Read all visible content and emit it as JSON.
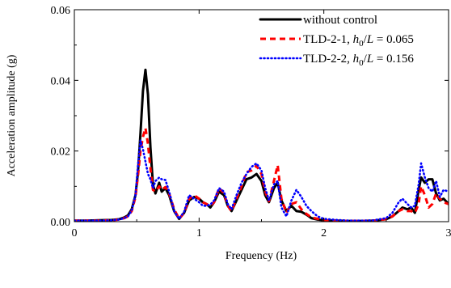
{
  "chart_data": {
    "type": "line",
    "title": "",
    "xlabel": "Frequency (Hz)",
    "ylabel": "Acceleration amplitude (g)",
    "xlim": [
      0,
      3
    ],
    "ylim": [
      0,
      0.06
    ],
    "x_ticks": [
      "0",
      "1",
      "2",
      "3"
    ],
    "y_ticks": [
      "0.00",
      "0.02",
      "0.04",
      "0.06"
    ],
    "grid": false,
    "legend_position": "top-right",
    "series": [
      {
        "name": "without control",
        "legend_prefix": "without control",
        "legend_italic": "",
        "legend_sub": "",
        "legend_suffix": "",
        "color": "#000000",
        "style": "solid",
        "x": [
          0,
          0.1,
          0.2,
          0.3,
          0.36,
          0.4,
          0.43,
          0.46,
          0.49,
          0.51,
          0.53,
          0.55,
          0.57,
          0.59,
          0.61,
          0.63,
          0.65,
          0.68,
          0.7,
          0.73,
          0.76,
          0.8,
          0.84,
          0.88,
          0.92,
          0.96,
          1.0,
          1.03,
          1.06,
          1.09,
          1.12,
          1.16,
          1.2,
          1.23,
          1.26,
          1.3,
          1.34,
          1.38,
          1.42,
          1.46,
          1.5,
          1.53,
          1.56,
          1.6,
          1.63,
          1.66,
          1.7,
          1.74,
          1.78,
          1.82,
          1.86,
          1.9,
          1.95,
          2.0,
          2.1,
          2.2,
          2.3,
          2.4,
          2.5,
          2.55,
          2.6,
          2.63,
          2.67,
          2.7,
          2.73,
          2.76,
          2.78,
          2.81,
          2.84,
          2.87,
          2.9,
          2.93,
          2.96,
          3.0
        ],
        "values": [
          0.0003,
          0.0003,
          0.0004,
          0.0005,
          0.0007,
          0.0012,
          0.0018,
          0.0035,
          0.0075,
          0.014,
          0.025,
          0.037,
          0.043,
          0.036,
          0.021,
          0.0105,
          0.008,
          0.011,
          0.0085,
          0.0095,
          0.0075,
          0.003,
          0.0008,
          0.0025,
          0.006,
          0.007,
          0.0065,
          0.0055,
          0.005,
          0.004,
          0.0055,
          0.0085,
          0.0075,
          0.0045,
          0.003,
          0.006,
          0.009,
          0.012,
          0.0125,
          0.0135,
          0.0115,
          0.0075,
          0.0055,
          0.0095,
          0.011,
          0.006,
          0.003,
          0.0045,
          0.003,
          0.0028,
          0.002,
          0.001,
          0.0006,
          0.0004,
          0.0003,
          0.0002,
          0.0002,
          0.0003,
          0.0007,
          0.0015,
          0.003,
          0.004,
          0.0035,
          0.004,
          0.0025,
          0.009,
          0.0125,
          0.011,
          0.012,
          0.012,
          0.008,
          0.006,
          0.0065,
          0.005
        ]
      },
      {
        "name": "TLD-2-1, h0/L = 0.065",
        "legend_prefix": "TLD-2-1, ",
        "legend_italic": "h",
        "legend_sub": "0",
        "legend_suffix": "/L = 0.065",
        "color": "#ff0000",
        "style": "dashed",
        "x": [
          0,
          0.1,
          0.2,
          0.3,
          0.36,
          0.4,
          0.43,
          0.46,
          0.49,
          0.51,
          0.53,
          0.55,
          0.57,
          0.59,
          0.61,
          0.63,
          0.65,
          0.68,
          0.7,
          0.73,
          0.76,
          0.8,
          0.84,
          0.88,
          0.92,
          0.96,
          1.0,
          1.03,
          1.06,
          1.09,
          1.12,
          1.16,
          1.2,
          1.23,
          1.26,
          1.3,
          1.34,
          1.38,
          1.42,
          1.46,
          1.5,
          1.53,
          1.56,
          1.6,
          1.63,
          1.66,
          1.7,
          1.74,
          1.78,
          1.82,
          1.86,
          1.9,
          1.95,
          2.0,
          2.1,
          2.2,
          2.3,
          2.4,
          2.5,
          2.55,
          2.6,
          2.63,
          2.67,
          2.7,
          2.73,
          2.76,
          2.78,
          2.81,
          2.84,
          2.87,
          2.9,
          2.93,
          2.96,
          3.0
        ],
        "values": [
          0.0003,
          0.0003,
          0.0003,
          0.0004,
          0.0006,
          0.001,
          0.0015,
          0.003,
          0.007,
          0.013,
          0.02,
          0.024,
          0.0265,
          0.022,
          0.015,
          0.009,
          0.0085,
          0.01,
          0.009,
          0.0098,
          0.008,
          0.0035,
          0.0008,
          0.0025,
          0.0065,
          0.0075,
          0.0065,
          0.0055,
          0.005,
          0.0045,
          0.0055,
          0.0095,
          0.008,
          0.0045,
          0.003,
          0.0065,
          0.01,
          0.014,
          0.0145,
          0.0158,
          0.0135,
          0.0085,
          0.0058,
          0.0115,
          0.016,
          0.0065,
          0.0025,
          0.005,
          0.0055,
          0.0035,
          0.0022,
          0.0012,
          0.0008,
          0.0004,
          0.0003,
          0.0002,
          0.0002,
          0.0003,
          0.0007,
          0.0015,
          0.003,
          0.0035,
          0.003,
          0.003,
          0.0025,
          0.005,
          0.01,
          0.0075,
          0.004,
          0.005,
          0.008,
          0.0065,
          0.0055,
          0.005
        ]
      },
      {
        "name": "TLD-2-2, h0/L = 0.156",
        "legend_prefix": "TLD-2-2, ",
        "legend_italic": "h",
        "legend_sub": "0",
        "legend_suffix": "/L = 0.156",
        "color": "#0000ff",
        "style": "dotted",
        "x": [
          0,
          0.1,
          0.2,
          0.3,
          0.36,
          0.4,
          0.43,
          0.46,
          0.49,
          0.51,
          0.53,
          0.55,
          0.57,
          0.59,
          0.61,
          0.63,
          0.65,
          0.68,
          0.7,
          0.73,
          0.76,
          0.8,
          0.84,
          0.88,
          0.92,
          0.96,
          1.0,
          1.03,
          1.06,
          1.09,
          1.12,
          1.16,
          1.2,
          1.23,
          1.26,
          1.3,
          1.34,
          1.38,
          1.42,
          1.46,
          1.5,
          1.53,
          1.56,
          1.6,
          1.63,
          1.66,
          1.7,
          1.74,
          1.78,
          1.82,
          1.86,
          1.9,
          1.95,
          2.0,
          2.1,
          2.2,
          2.3,
          2.4,
          2.5,
          2.55,
          2.6,
          2.63,
          2.67,
          2.7,
          2.73,
          2.76,
          2.78,
          2.81,
          2.84,
          2.87,
          2.9,
          2.93,
          2.96,
          3.0
        ],
        "values": [
          0.0003,
          0.0003,
          0.0003,
          0.0004,
          0.0006,
          0.001,
          0.0015,
          0.0032,
          0.0075,
          0.016,
          0.023,
          0.0205,
          0.017,
          0.0135,
          0.012,
          0.0095,
          0.0115,
          0.0125,
          0.012,
          0.0118,
          0.0085,
          0.003,
          0.0008,
          0.0028,
          0.0075,
          0.0065,
          0.0055,
          0.0045,
          0.0045,
          0.0048,
          0.006,
          0.0095,
          0.0085,
          0.005,
          0.0035,
          0.0075,
          0.011,
          0.0135,
          0.0155,
          0.0165,
          0.0145,
          0.0095,
          0.006,
          0.0105,
          0.0115,
          0.004,
          0.0015,
          0.006,
          0.009,
          0.007,
          0.0045,
          0.003,
          0.0015,
          0.0008,
          0.0005,
          0.0003,
          0.0003,
          0.0004,
          0.001,
          0.0025,
          0.0055,
          0.0065,
          0.005,
          0.004,
          0.0045,
          0.0105,
          0.0165,
          0.0125,
          0.0095,
          0.0085,
          0.0115,
          0.007,
          0.009,
          0.0085
        ]
      }
    ]
  }
}
